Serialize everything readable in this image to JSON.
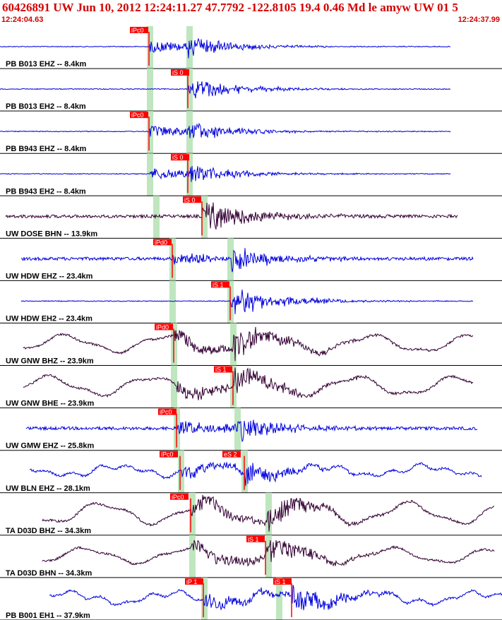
{
  "header": {
    "title": "60426891 UW Jun 10, 2012 12:24:11.27    47.7792 -122.8105 19.4 0.46 Md le amyw UW 01   5",
    "time_start": "12:24:04.63",
    "time_end": "12:24:37.99"
  },
  "colors": {
    "header_text": "#d40000",
    "trace_blue": "#0000dd",
    "trace_dark": "#330033",
    "pick_red": "#ff0000",
    "window_green": "#bfe6bf",
    "separator": "#000000"
  },
  "traces": [
    {
      "label": "PB B013 EHZ -- 8.4km",
      "color": "blue",
      "style": "quiet",
      "start": 0,
      "end": 638,
      "p_green": 212,
      "s_green": 268,
      "picks": [
        {
          "label": "iPc0",
          "x": 184,
          "line": 211
        }
      ],
      "onset": 211,
      "s_onset": 266,
      "amp": 14,
      "lp": 0
    },
    {
      "label": "PB B013 EH2 -- 8.4km",
      "color": "blue",
      "style": "quiet",
      "start": 0,
      "end": 638,
      "p_green": 212,
      "s_green": 268,
      "picks": [
        {
          "label": "iS 0",
          "x": 242,
          "line": 266
        }
      ],
      "onset": 266,
      "s_onset": 272,
      "amp": 13,
      "lp": 0
    },
    {
      "label": "PB B943 EHZ -- 8.4km",
      "color": "blue",
      "style": "quiet",
      "start": 0,
      "end": 638,
      "p_green": 212,
      "s_green": 268,
      "picks": [
        {
          "label": "iPc0",
          "x": 184,
          "line": 211
        }
      ],
      "onset": 211,
      "s_onset": 266,
      "amp": 14,
      "lp": 0
    },
    {
      "label": "PB B943 EH2 -- 8.4km",
      "color": "blue",
      "style": "quiet",
      "start": 0,
      "end": 638,
      "p_green": 212,
      "s_green": 268,
      "picks": [
        {
          "label": "iS 0",
          "x": 242,
          "line": 266
        }
      ],
      "onset": 212,
      "s_onset": 266,
      "amp": 14,
      "lp": 0
    },
    {
      "label": "UW DOSE BHN -- 13.9km",
      "color": "dark",
      "style": "noisy",
      "start": 8,
      "end": 648,
      "p_green": 221,
      "s_green": 289,
      "picks": [
        {
          "label": "iS 0",
          "x": 259,
          "line": 286
        }
      ],
      "onset": 286,
      "s_onset": 290,
      "amp": 18,
      "lp": 0
    },
    {
      "label": "UW HDW EHZ -- 23.4km",
      "color": "blue",
      "style": "noisy",
      "start": 30,
      "end": 670,
      "p_green": 244,
      "s_green": 326,
      "picks": [
        {
          "label": "iPd0",
          "x": 217,
          "line": 244
        }
      ],
      "onset": 244,
      "s_onset": 326,
      "amp": 16,
      "lp": 0
    },
    {
      "label": "UW HDW EH2 -- 23.4km",
      "color": "blue",
      "style": "quiet",
      "start": 30,
      "end": 670,
      "p_green": 244,
      "s_green": 326,
      "picks": [
        {
          "label": "iS 1",
          "x": 299,
          "line": 326
        }
      ],
      "onset": 326,
      "s_onset": 330,
      "amp": 16,
      "lp": 0
    },
    {
      "label": "UW GNW BHZ -- 23.9km",
      "color": "dark",
      "style": "lp",
      "start": 33,
      "end": 670,
      "p_green": 246,
      "s_green": 330,
      "picks": [
        {
          "label": "iPd0",
          "x": 219,
          "line": 246
        }
      ],
      "onset": 246,
      "s_onset": 330,
      "amp": 20,
      "lp": 18
    },
    {
      "label": "UW GNW BHE -- 23.9km",
      "color": "dark",
      "style": "lp",
      "start": 33,
      "end": 670,
      "p_green": 246,
      "s_green": 330,
      "picks": [
        {
          "label": "iS 1",
          "x": 303,
          "line": 330
        }
      ],
      "onset": 250,
      "s_onset": 330,
      "amp": 20,
      "lp": 20
    },
    {
      "label": "UW GMW EHZ -- 25.8km",
      "color": "blue",
      "style": "noisy",
      "start": 37,
      "end": 676,
      "p_green": 250,
      "s_green": 336,
      "picks": [
        {
          "label": "iPc0",
          "x": 224,
          "line": 250
        }
      ],
      "onset": 250,
      "s_onset": 336,
      "amp": 16,
      "lp": 0
    },
    {
      "label": "UW BLN EHZ -- 28.1km",
      "color": "blue",
      "style": "wavy",
      "start": 42,
      "end": 682,
      "p_green": 256,
      "s_green": 346,
      "picks": [
        {
          "label": "iPc0",
          "x": 226,
          "line": 255
        },
        {
          "label": "eS 2",
          "x": 315,
          "line": 346
        }
      ],
      "onset": 255,
      "s_onset": 346,
      "amp": 16,
      "lp": 10
    },
    {
      "label": "TA D03D BHZ -- 34.3km",
      "color": "dark",
      "style": "lp",
      "start": 60,
      "end": 700,
      "p_green": 272,
      "s_green": 380,
      "picks": [
        {
          "label": "iPc0",
          "x": 241,
          "line": 270
        }
      ],
      "onset": 270,
      "s_onset": 378,
      "amp": 20,
      "lp": 22
    },
    {
      "label": "TA D03D BHN -- 34.3km",
      "color": "dark",
      "style": "lp",
      "start": 60,
      "end": 700,
      "p_green": 272,
      "s_green": 380,
      "picks": [
        {
          "label": "iS 1",
          "x": 349,
          "line": 376
        }
      ],
      "onset": 270,
      "s_onset": 376,
      "amp": 20,
      "lp": 16
    },
    {
      "label": "PB B001 EH1 -- 37.9km",
      "color": "blue",
      "style": "wavy",
      "start": 70,
      "end": 711,
      "p_green": 289,
      "s_green": 395,
      "picks": [
        {
          "label": "iP 1",
          "x": 262,
          "line": 288
        },
        {
          "label": "iS 1",
          "x": 387,
          "line": 413
        }
      ],
      "onset": 288,
      "s_onset": 413,
      "amp": 18,
      "lp": 12
    }
  ]
}
